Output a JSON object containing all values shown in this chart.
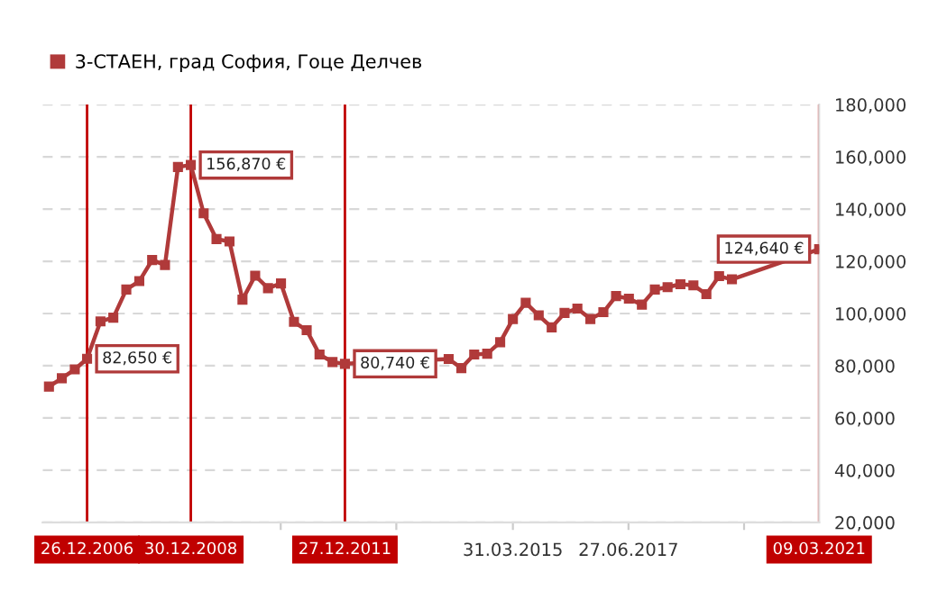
{
  "chart_data": {
    "type": "line",
    "series": [
      {
        "name": "3-СТАЕН, град София, Гоце Делчев",
        "color": "#b03a3a",
        "x": [
          "2006-03-31",
          "2006-06-30",
          "2006-09-30",
          "2006-12-26",
          "2007-03-31",
          "2007-06-30",
          "2007-09-30",
          "2007-12-31",
          "2008-03-31",
          "2008-06-30",
          "2008-09-30",
          "2008-12-30",
          "2009-03-31",
          "2009-06-30",
          "2009-09-30",
          "2009-12-31",
          "2010-03-31",
          "2010-06-30",
          "2010-09-30",
          "2010-12-31",
          "2011-03-31",
          "2011-06-30",
          "2011-09-30",
          "2011-12-27",
          "2013-12-31",
          "2014-03-31",
          "2014-06-30",
          "2014-09-30",
          "2014-12-31",
          "2015-03-31",
          "2015-06-30",
          "2015-09-30",
          "2015-12-31",
          "2016-03-31",
          "2016-06-30",
          "2016-09-30",
          "2016-12-31",
          "2017-03-31",
          "2017-06-30",
          "2017-09-30",
          "2017-12-31",
          "2018-03-31",
          "2018-06-30",
          "2018-09-30",
          "2018-12-31",
          "2019-03-31",
          "2019-06-30",
          "2021-03-09"
        ],
        "values": [
          72000,
          75200,
          78600,
          82650,
          97000,
          98400,
          109200,
          112400,
          120500,
          118600,
          156100,
          156870,
          138400,
          128500,
          127600,
          105300,
          114500,
          109700,
          111500,
          96800,
          93600,
          84300,
          81400,
          80740,
          82600,
          79100,
          84300,
          84600,
          89000,
          97900,
          104100,
          99300,
          94700,
          100200,
          101900,
          97900,
          100500,
          106700,
          105700,
          103400,
          109200,
          110100,
          111200,
          110800,
          107400,
          114300,
          113100,
          124640
        ]
      }
    ],
    "xlim": [
      "2006-02-14",
      "2021-03-09"
    ],
    "xticks": [
      {
        "value": "2010-09-28",
        "label": null
      },
      {
        "value": "2012-12-25",
        "label": null
      },
      {
        "value": "2015-03-31",
        "label": "31.03.2015"
      },
      {
        "value": "2017-06-27",
        "label": "27.06.2017"
      },
      {
        "value": "2019-09-24",
        "label": null
      }
    ],
    "ylim": [
      20000,
      180000
    ],
    "yticks": [
      {
        "value": 20000,
        "label": "20,000"
      },
      {
        "value": 40000,
        "label": "40,000"
      },
      {
        "value": 60000,
        "label": "60,000"
      },
      {
        "value": 80000,
        "label": "80,000"
      },
      {
        "value": 100000,
        "label": "100,000"
      },
      {
        "value": 120000,
        "label": "120,000"
      },
      {
        "value": 140000,
        "label": "140,000"
      },
      {
        "value": 160000,
        "label": "160,000"
      },
      {
        "value": 180000,
        "label": "180,000"
      }
    ],
    "ref_lines": [
      {
        "axis": "x",
        "value": "2006-12-26",
        "label": "26.12.2006",
        "color": "#c00000"
      },
      {
        "axis": "x",
        "value": "2008-12-30",
        "label": "30.12.2008",
        "color": "#c00000"
      },
      {
        "axis": "x",
        "value": "2011-12-27",
        "label": "27.12.2011",
        "color": "#c00000"
      },
      {
        "axis": "x",
        "value": "2021-03-09",
        "label": "09.03.2021",
        "color": "#c00000"
      }
    ],
    "annotations": [
      {
        "text": "82,650 €",
        "x": "2006-12-26",
        "y": 82650
      },
      {
        "text": "156,870 €",
        "x": "2008-12-30",
        "y": 156870
      },
      {
        "text": "80,740 €",
        "x": "2011-12-27",
        "y": 80740
      },
      {
        "text": "124,640 €",
        "x": "2021-03-09",
        "y": 124640
      }
    ],
    "marker": "square",
    "line_style": "solid",
    "grid": "y",
    "legend": "top left"
  }
}
